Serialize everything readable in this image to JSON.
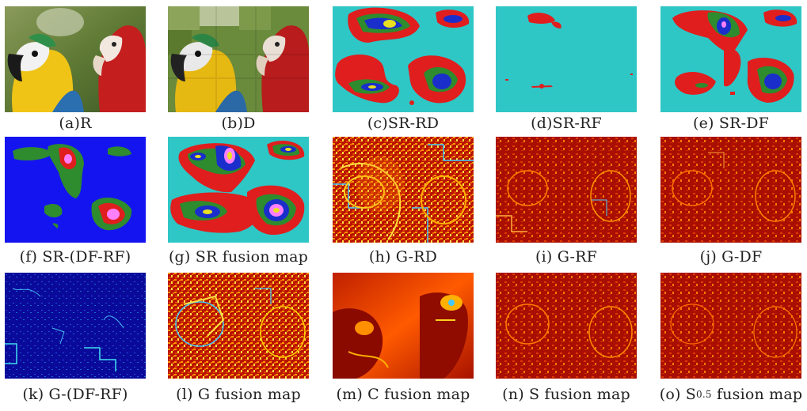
{
  "figure": {
    "panels": [
      {
        "id": "a",
        "caption": "(a)R",
        "kind": "photo"
      },
      {
        "id": "b",
        "caption": "(b)D",
        "kind": "photo-degraded"
      },
      {
        "id": "c",
        "caption": "(c)SR-RD",
        "kind": "sr-map"
      },
      {
        "id": "d",
        "caption": "(d)SR-RF",
        "kind": "sr-map-sparse"
      },
      {
        "id": "e",
        "caption": "(e) SR-DF",
        "kind": "sr-map"
      },
      {
        "id": "f",
        "caption": "(f) SR-(DF-RF)",
        "kind": "sr-map-blue"
      },
      {
        "id": "g",
        "caption": "(g) SR fusion map",
        "kind": "sr-map"
      },
      {
        "id": "h",
        "caption": "(h) G-RD",
        "kind": "texture-hot"
      },
      {
        "id": "i",
        "caption": "(i) G-RF",
        "kind": "texture-red"
      },
      {
        "id": "j",
        "caption": "(j) G-DF",
        "kind": "texture-red"
      },
      {
        "id": "k",
        "caption": "(k) G-(DF-RF)",
        "kind": "texture-blue"
      },
      {
        "id": "l",
        "caption": "(l) G fusion map",
        "kind": "texture-hot"
      },
      {
        "id": "m",
        "caption": "(m) C fusion map",
        "kind": "texture-smooth"
      },
      {
        "id": "n",
        "caption": "(n) S fusion map",
        "kind": "texture-red"
      },
      {
        "id": "o",
        "caption_prefix": "(o) S",
        "caption_sup": "0.5",
        "caption_suffix": " fusion map",
        "kind": "texture-red"
      }
    ]
  }
}
